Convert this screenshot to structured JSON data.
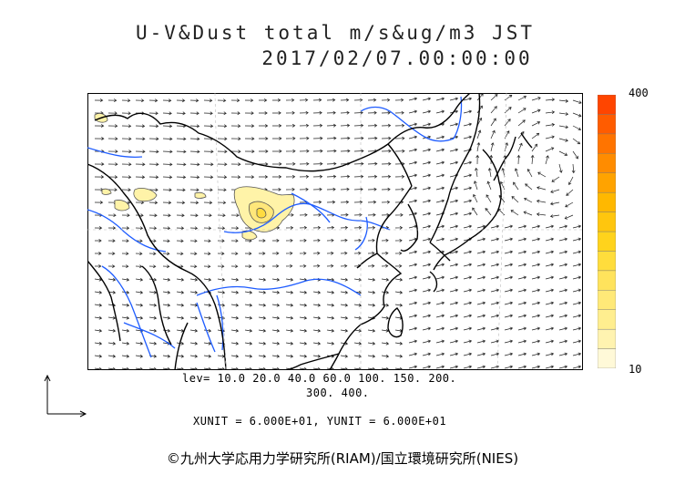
{
  "title": {
    "line1": "U-V&Dust total m/s&ug/m3 JST",
    "line2": "2017/02/07.00:00:00"
  },
  "colorbar": {
    "max_label": "400",
    "min_label": "10",
    "colors": [
      "#fff9d8",
      "#fff3b0",
      "#ffee8f",
      "#ffe978",
      "#ffe35c",
      "#ffdd3c",
      "#ffd31c",
      "#ffc60e",
      "#ffb800",
      "#ffa300",
      "#ff8c00",
      "#ff7400",
      "#ff5c00",
      "#ff4500"
    ]
  },
  "levels": {
    "line1": "lev= 10.0 20.0 40.0 60.0 100. 150. 200.",
    "line2": "300. 400."
  },
  "units": "XUNIT = 6.000E+01, YUNIT = 6.000E+01",
  "copyright": "©九州大学応用力学研究所(RIAM)/国立環境研究所(NIES)",
  "colors": {
    "coast": "#000000",
    "river": "#1e5cff",
    "dust": "#fff2a0"
  }
}
